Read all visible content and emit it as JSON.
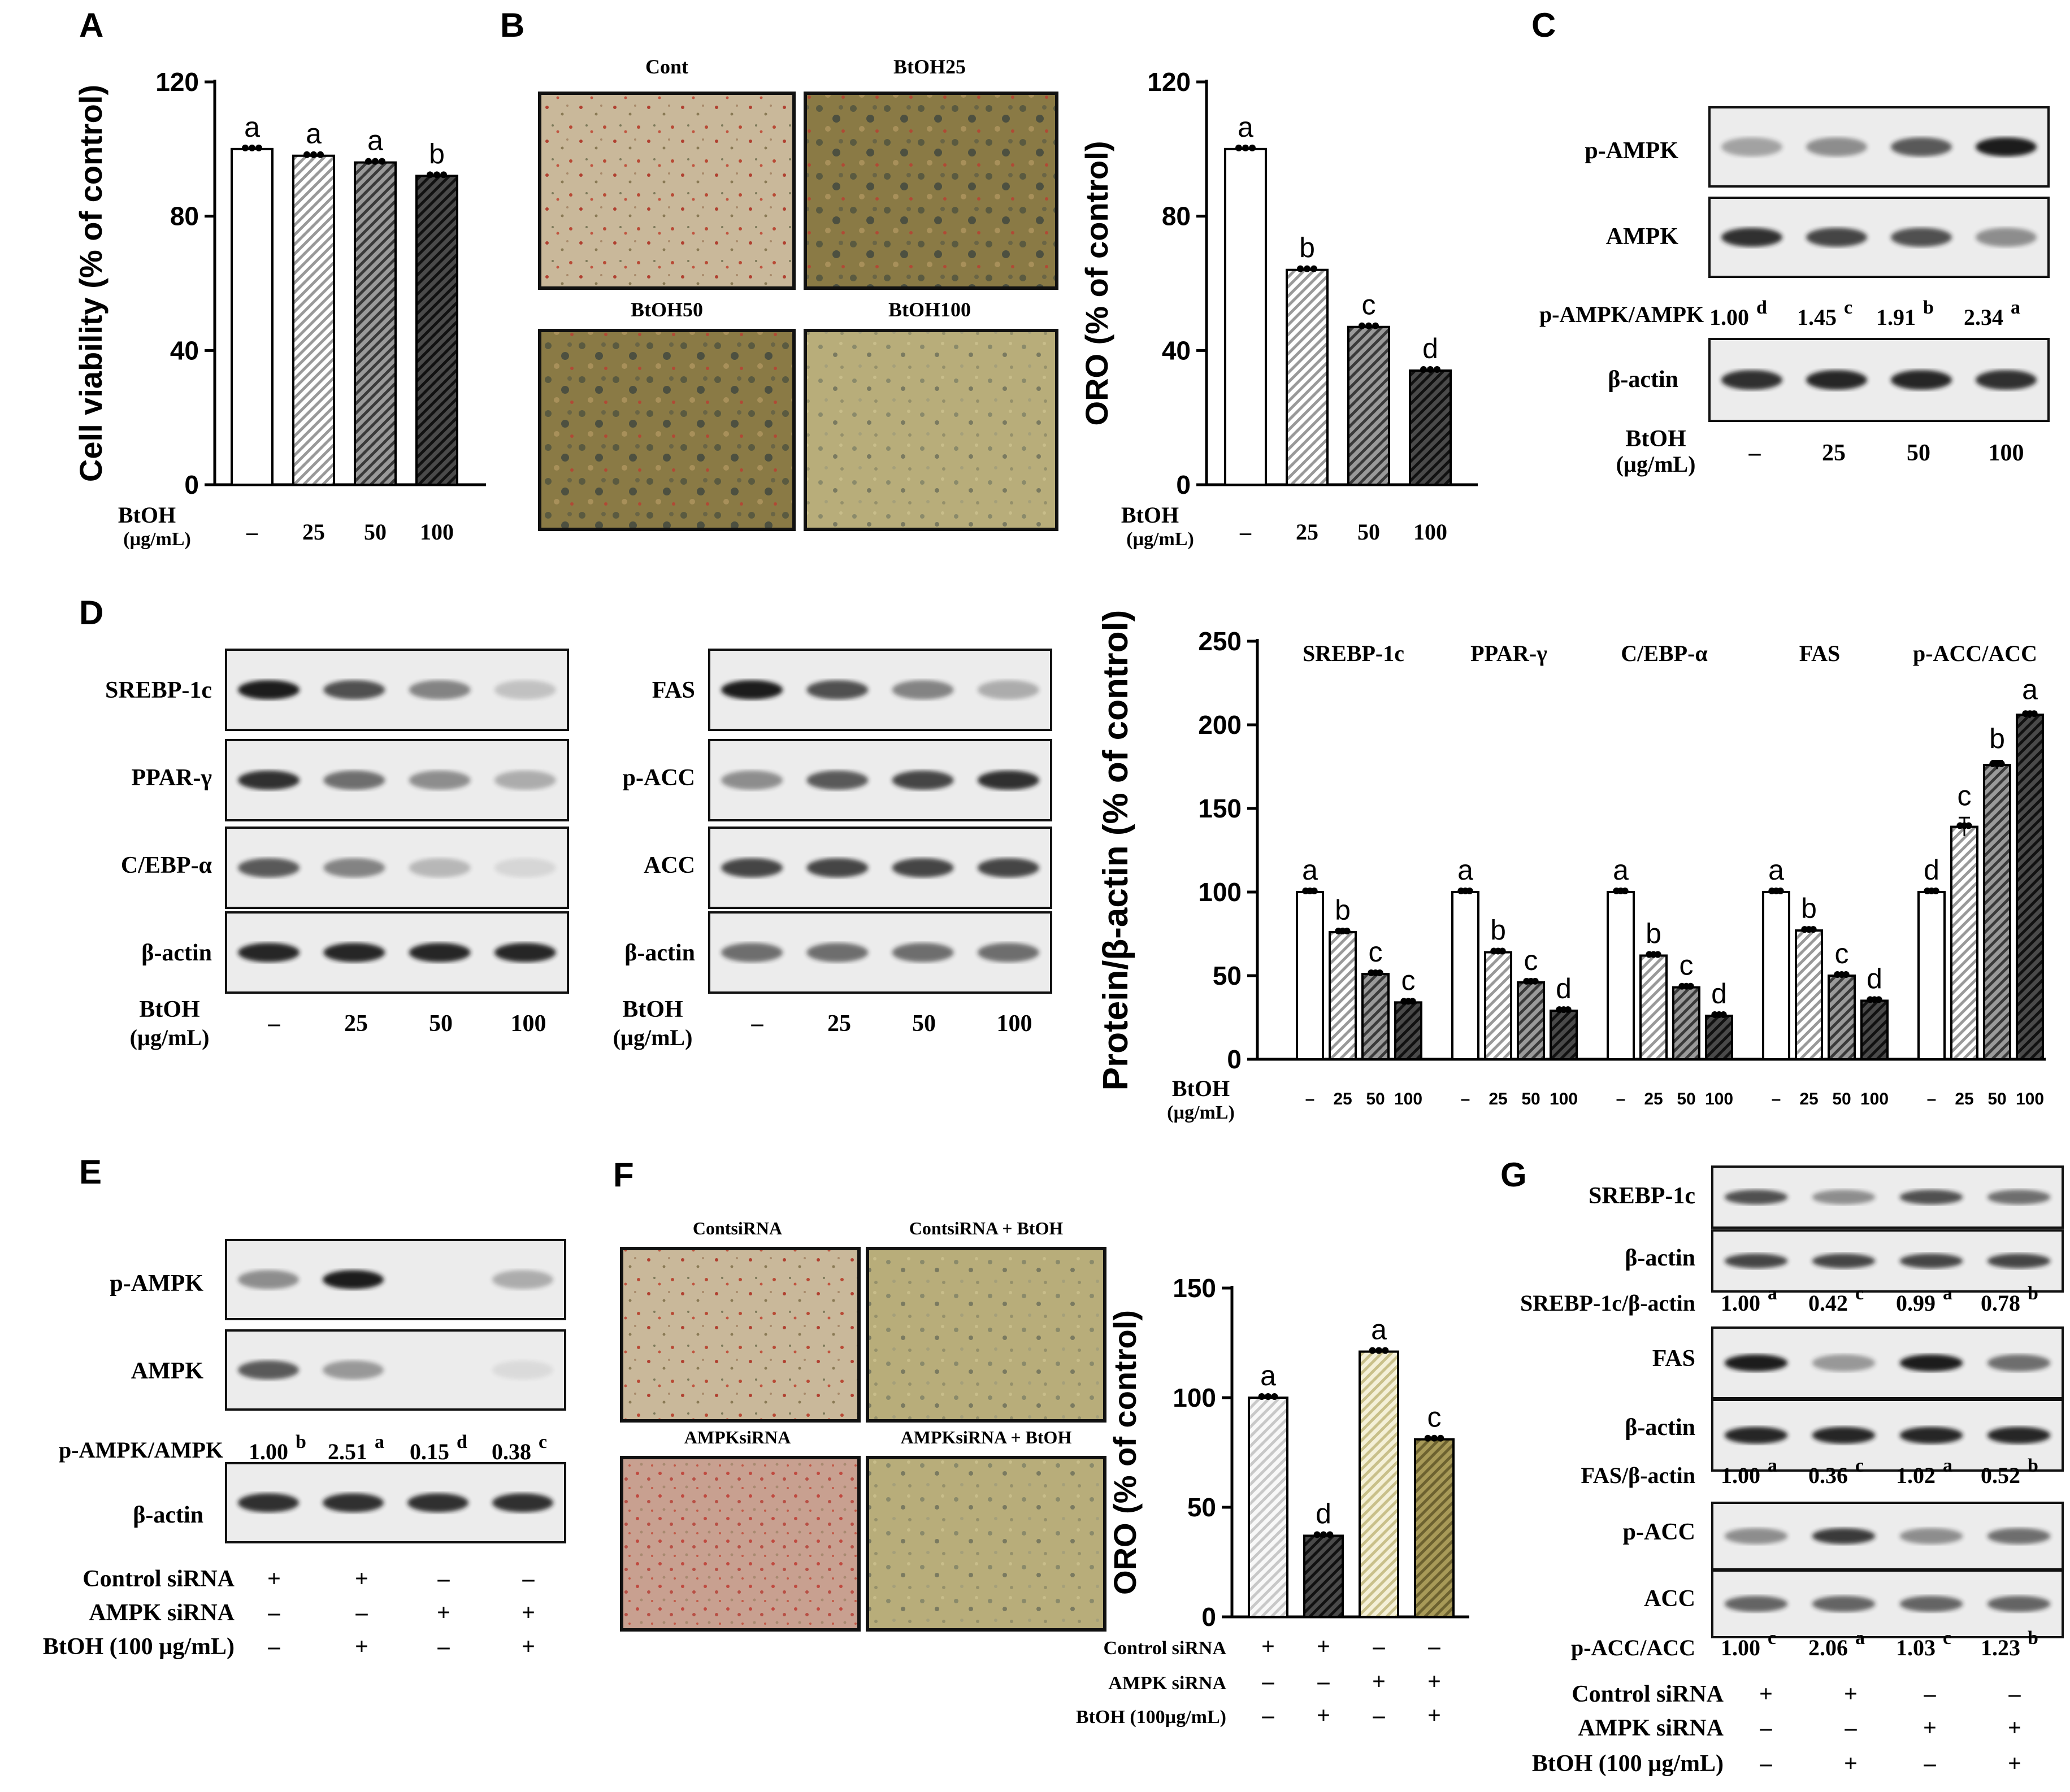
{
  "panels": {
    "A": "A",
    "B": "B",
    "C": "C",
    "D": "D",
    "E": "E",
    "F": "F",
    "G": "G"
  },
  "common": {
    "btoh": "BtOH",
    "unit": "(µg/mL)",
    "doses": [
      "–",
      "25",
      "50",
      "100"
    ],
    "actin": "β-actin"
  },
  "chart_data": [
    {
      "id": "A",
      "type": "bar",
      "title": "",
      "ylabel": "Cell viability (% of control)",
      "xlabel": "BtOH (µg/mL)",
      "ylim": [
        0,
        120
      ],
      "yticks": [
        0,
        40,
        80,
        120
      ],
      "categories": [
        "–",
        "25",
        "50",
        "100"
      ],
      "values": [
        100,
        98,
        96,
        92
      ],
      "errors": [
        0.5,
        0.6,
        0.7,
        0.9
      ],
      "letters": [
        "a",
        "a",
        "a",
        "b"
      ]
    },
    {
      "id": "B",
      "type": "bar",
      "title": "",
      "ylabel": "ORO (% of control)",
      "xlabel": "BtOH (µg/mL)",
      "ylim": [
        0,
        120
      ],
      "yticks": [
        0,
        40,
        80,
        120
      ],
      "categories": [
        "–",
        "25",
        "50",
        "100"
      ],
      "values": [
        100,
        64,
        47,
        34
      ],
      "errors": [
        0.5,
        0.8,
        1.0,
        1.0
      ],
      "letters": [
        "a",
        "b",
        "c",
        "d"
      ]
    },
    {
      "id": "D",
      "type": "bar",
      "title": "",
      "ylabel": "Protein/β-actin (% of control)",
      "xlabel": "BtOH (µg/mL)",
      "ylim": [
        0,
        250
      ],
      "yticks": [
        0,
        50,
        100,
        150,
        200,
        250
      ],
      "categories": [
        "–",
        "25",
        "50",
        "100"
      ],
      "series": [
        {
          "name": "SREBP-1c",
          "values": [
            100,
            76,
            51,
            34
          ],
          "errors": [
            0.5,
            1.5,
            1.2,
            1.0
          ],
          "letters": [
            "a",
            "b",
            "c",
            "c"
          ]
        },
        {
          "name": "PPAR-γ",
          "values": [
            100,
            64,
            46,
            29
          ],
          "errors": [
            0.5,
            1.2,
            1.2,
            1.0
          ],
          "letters": [
            "a",
            "b",
            "c",
            "d"
          ]
        },
        {
          "name": "C/EBP-α",
          "values": [
            100,
            62,
            43,
            26
          ],
          "errors": [
            0.5,
            1.2,
            1.0,
            1.0
          ],
          "letters": [
            "a",
            "b",
            "c",
            "d"
          ]
        },
        {
          "name": "FAS",
          "values": [
            100,
            77,
            50,
            35
          ],
          "errors": [
            0.5,
            1.2,
            1.2,
            1.0
          ],
          "letters": [
            "a",
            "b",
            "c",
            "d"
          ]
        },
        {
          "name": "p-ACC/ACC",
          "values": [
            100,
            139,
            176,
            206
          ],
          "errors": [
            0.5,
            5.5,
            2.5,
            2.0
          ],
          "letters": [
            "d",
            "c",
            "b",
            "a"
          ]
        }
      ]
    },
    {
      "id": "F",
      "type": "bar",
      "title": "",
      "ylabel": "ORO (% of control)",
      "ylim": [
        0,
        150
      ],
      "yticks": [
        0,
        50,
        100,
        150
      ],
      "categories": [
        "Control siRNA + ",
        "Control siRNA + BtOH",
        "AMPK siRNA",
        "AMPK siRNA + BtOH"
      ],
      "values": [
        100,
        37,
        121,
        81
      ],
      "errors": [
        0.5,
        0.8,
        0.8,
        0.8
      ],
      "letters": [
        "a",
        "d",
        "a",
        "c"
      ],
      "conditions": {
        "rows": [
          "Control siRNA",
          "AMPK siRNA",
          "BtOH (100µg/mL)"
        ],
        "signs": [
          [
            "+",
            "+",
            "–",
            "–"
          ],
          [
            "–",
            "–",
            "+",
            "+"
          ],
          [
            "–",
            "+",
            "–",
            "+"
          ]
        ]
      }
    }
  ],
  "blots": {
    "C": {
      "rows": [
        "p-AMPK",
        "AMPK",
        "β-actin"
      ],
      "ratio_label": "p-AMPK/AMPK",
      "ratios": [
        "1.00",
        "1.45",
        "1.91",
        "2.34"
      ],
      "sups": [
        "d",
        "c",
        "b",
        "a"
      ]
    },
    "D_left": {
      "rows": [
        "SREBP-1c",
        "PPAR-γ",
        "C/EBP-α",
        "β-actin"
      ]
    },
    "D_right": {
      "rows": [
        "FAS",
        "p-ACC",
        "ACC",
        "β-actin"
      ]
    },
    "E": {
      "rows": [
        "p-AMPK",
        "AMPK",
        "β-actin"
      ],
      "ratio_label": "p-AMPK/AMPK",
      "ratios": [
        "1.00",
        "2.51",
        "0.15",
        "0.38"
      ],
      "sups": [
        "b",
        "a",
        "d",
        "c"
      ],
      "conditions": {
        "rows": [
          "Control siRNA",
          "AMPK siRNA",
          "BtOH (100 µg/mL)"
        ],
        "signs": [
          [
            "+",
            "+",
            "–",
            "–"
          ],
          [
            "–",
            "–",
            "+",
            "+"
          ],
          [
            "–",
            "+",
            "–",
            "+"
          ]
        ]
      }
    },
    "G": {
      "rows": [
        "SREBP-1c",
        "β-actin",
        "FAS",
        "β-actin",
        "p-ACC",
        "ACC"
      ],
      "ratio1_label": "SREBP-1c/β-actin",
      "ratio1": [
        "1.00",
        "0.42",
        "0.99",
        "0.78"
      ],
      "sup1": [
        "a",
        "c",
        "a",
        "b"
      ],
      "ratio2_label": "FAS/β-actin",
      "ratio2": [
        "1.00",
        "0.36",
        "1.02",
        "0.52"
      ],
      "sup2": [
        "a",
        "c",
        "a",
        "b"
      ],
      "ratio3_label": "p-ACC/ACC",
      "ratio3": [
        "1.00",
        "2.06",
        "1.03",
        "1.23"
      ],
      "sup3": [
        "c",
        "a",
        "c",
        "b"
      ],
      "conditions": {
        "rows": [
          "Control siRNA",
          "AMPK  siRNA",
          "BtOH (100 µg/mL)"
        ],
        "signs": [
          [
            "+",
            "+",
            "–",
            "–"
          ],
          [
            "–",
            "–",
            "+",
            "+"
          ],
          [
            "–",
            "+",
            "–",
            "+"
          ]
        ]
      }
    }
  },
  "images": {
    "B": [
      "Cont",
      "BtOH25",
      "BtOH50",
      "BtOH100"
    ],
    "F": [
      "ContsiRNA",
      "ContsiRNA + BtOH",
      "AMPKsiRNA",
      "AMPKsiRNA + BtOH"
    ]
  },
  "colors": {
    "bar0": "#ffffff",
    "bar3": "#1a1a1a",
    "stain_red": "#c0392b",
    "gel_bg": "#ededed",
    "band": "#2b2b2b"
  }
}
